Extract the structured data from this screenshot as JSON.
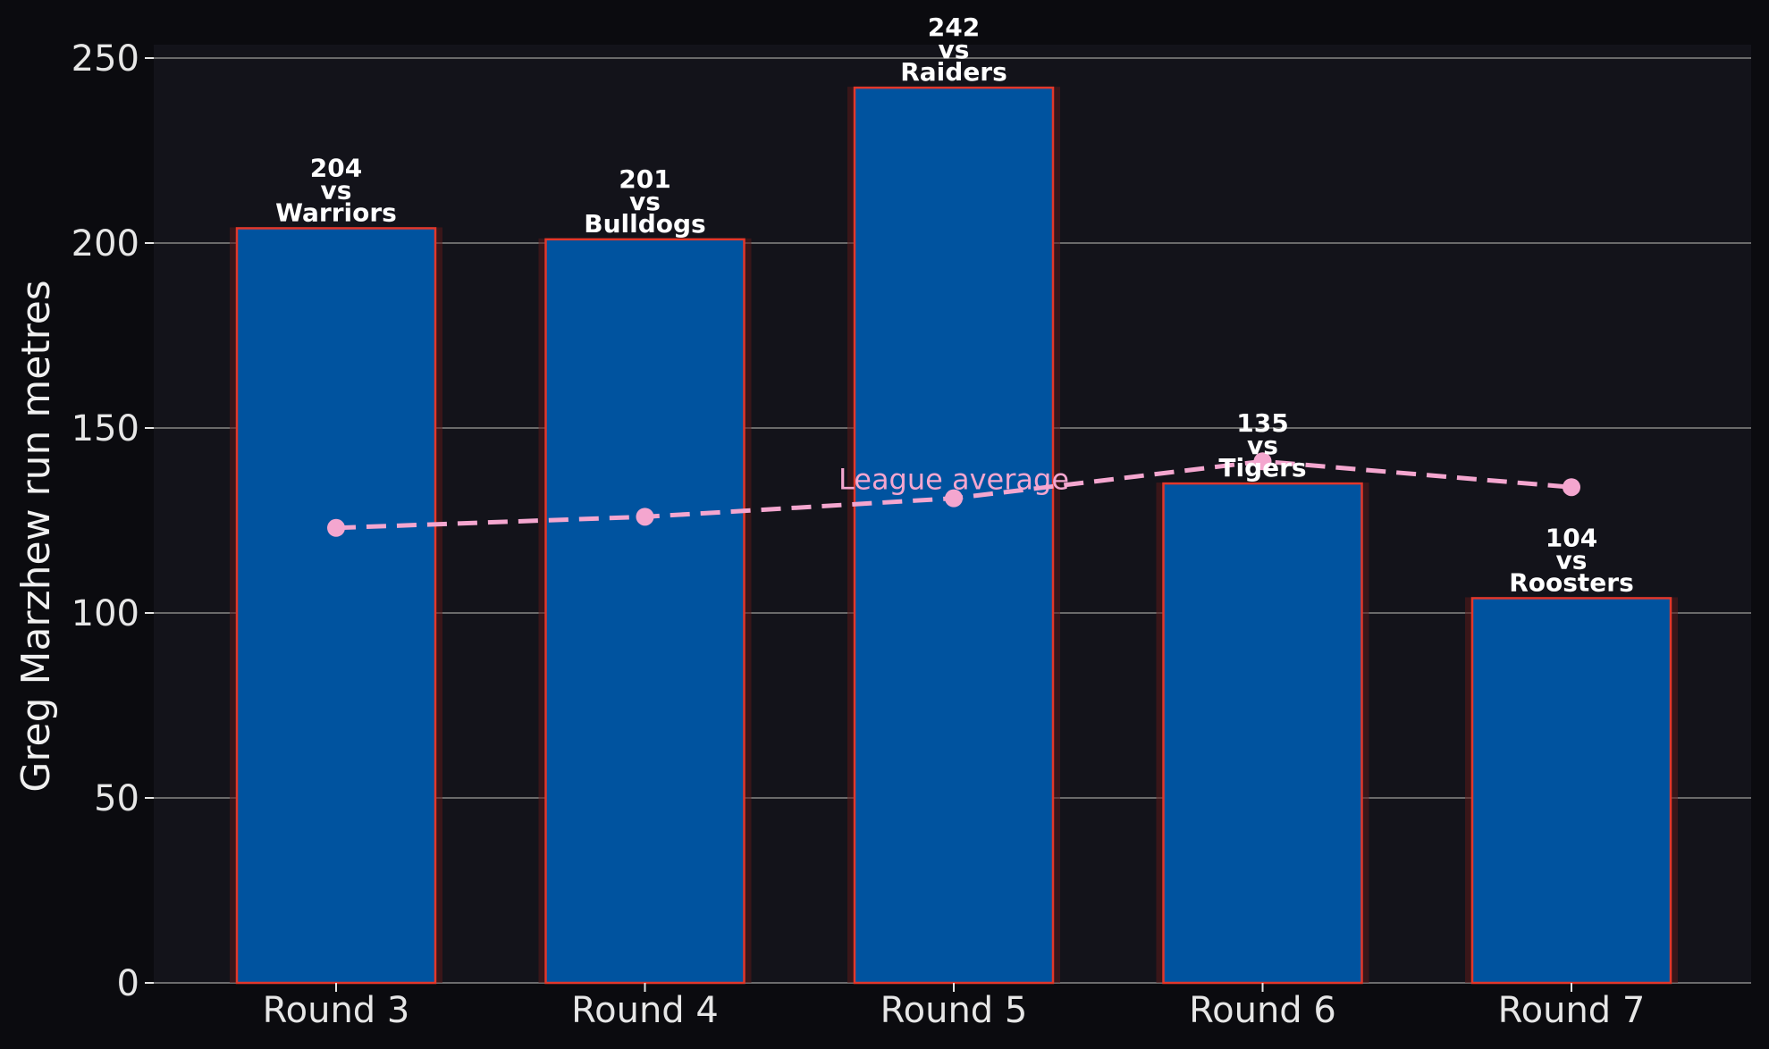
{
  "chart_data": {
    "type": "bar",
    "title": "",
    "xlabel": "",
    "ylabel": "Greg Marzhew run metres",
    "ylim": [
      0,
      255
    ],
    "yticks": [
      0,
      50,
      100,
      150,
      200,
      250
    ],
    "grid": "horizontal",
    "categories": [
      "Round 3",
      "Round 4",
      "Round 5",
      "Round 6",
      "Round 7"
    ],
    "series": [
      {
        "values": [
          204,
          201,
          242,
          135,
          104
        ],
        "opponents": [
          "Warriors",
          "Bulldogs",
          "Raiders",
          "Tigers",
          "Roosters"
        ],
        "label_joiner": "vs",
        "color": "#00539f",
        "edge_color": "#e2372b"
      },
      {
        "name": "League average",
        "type": "line",
        "style": "dashed",
        "values": [
          123,
          126,
          131,
          141,
          134
        ],
        "color": "#f4a6cf"
      }
    ],
    "colors": {
      "page_background": "#0b0b0f",
      "plot_background": "#13131a",
      "grid": "#6a6a6a",
      "text": "#e6e6e6"
    }
  }
}
